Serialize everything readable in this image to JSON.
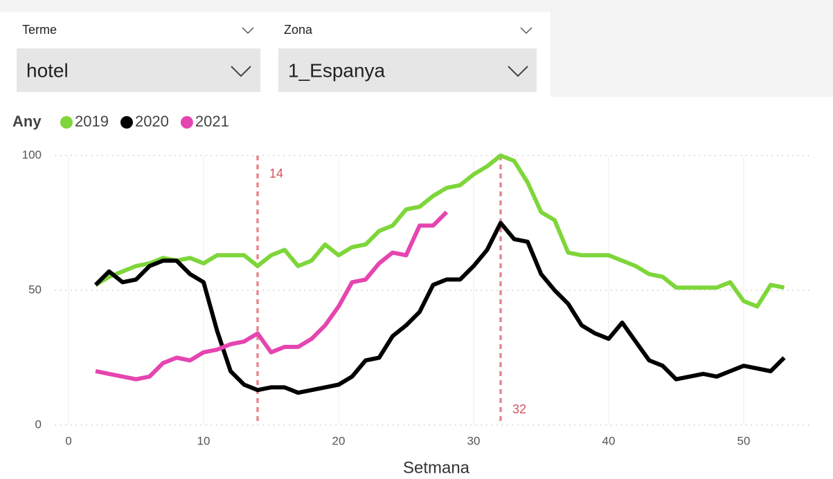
{
  "slicers": [
    {
      "label": "Terme",
      "value": "hotel"
    },
    {
      "label": "Zona",
      "value": "1_Espanya"
    }
  ],
  "chart_data": {
    "type": "line",
    "legend_title": "Any",
    "x_label": "Setmana",
    "x": [
      2,
      3,
      4,
      5,
      6,
      7,
      8,
      9,
      10,
      11,
      12,
      13,
      14,
      15,
      16,
      17,
      18,
      19,
      20,
      21,
      22,
      23,
      24,
      25,
      26,
      27,
      28,
      29,
      30,
      31,
      32,
      33,
      34,
      35,
      36,
      37,
      38,
      39,
      40,
      41,
      42,
      43,
      44,
      45,
      46,
      47,
      48,
      49,
      50,
      51,
      52,
      53
    ],
    "series": [
      {
        "name": "2019",
        "color": "#7ed63a",
        "values": [
          52,
          55,
          57,
          59,
          60,
          62,
          61,
          62,
          60,
          63,
          63,
          63,
          59,
          63,
          65,
          59,
          61,
          67,
          63,
          66,
          67,
          72,
          74,
          80,
          81,
          85,
          88,
          89,
          93,
          96,
          100,
          98,
          90,
          79,
          76,
          64,
          63,
          63,
          63,
          61,
          59,
          56,
          55,
          51,
          51,
          51,
          51,
          53,
          46,
          44,
          52,
          51
        ]
      },
      {
        "name": "2020",
        "color": "#000000",
        "values": [
          52,
          57,
          53,
          54,
          59,
          61,
          61,
          56,
          53,
          35,
          20,
          15,
          13,
          14,
          14,
          12,
          13,
          14,
          15,
          18,
          24,
          25,
          33,
          37,
          42,
          52,
          54,
          54,
          59,
          65,
          75,
          69,
          68,
          56,
          50,
          45,
          37,
          34,
          32,
          38,
          31,
          24,
          22,
          17,
          18,
          19,
          18,
          20,
          22,
          21,
          20,
          25
        ]
      },
      {
        "name": "2021",
        "color": "#e545b0",
        "values": [
          20,
          19,
          18,
          17,
          18,
          23,
          25,
          24,
          27,
          28,
          30,
          31,
          34,
          27,
          29,
          29,
          32,
          37,
          44,
          53,
          54,
          60,
          64,
          63,
          74,
          74,
          79,
          null,
          null,
          null,
          null,
          null,
          null,
          null,
          null,
          null,
          null,
          null,
          null,
          null,
          null,
          null,
          null,
          null,
          null,
          null,
          null,
          null,
          null,
          null,
          null,
          null
        ]
      }
    ],
    "reference_lines": [
      14,
      32
    ],
    "reference_color": "#e8878f",
    "xlim": [
      -1,
      55
    ],
    "ylim": [
      0,
      100
    ],
    "xticks": [
      0,
      10,
      20,
      30,
      40,
      50
    ],
    "yticks": [
      0,
      50,
      100
    ],
    "grid": true
  }
}
